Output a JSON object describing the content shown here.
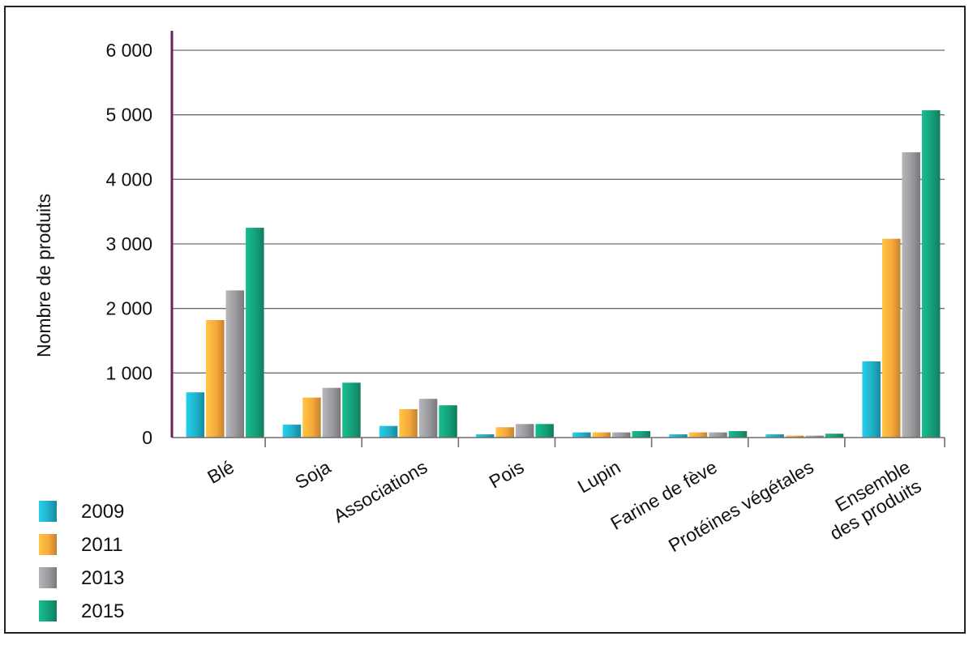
{
  "chart_data": {
    "type": "bar",
    "title": "",
    "xlabel": "",
    "ylabel": "Nombre de produits",
    "ylim": [
      0,
      6000
    ],
    "yticks": [
      0,
      1000,
      2000,
      3000,
      4000,
      5000,
      6000
    ],
    "ytick_labels": [
      "0",
      "1 000",
      "2 000",
      "3 000",
      "4 000",
      "5 000",
      "6 000"
    ],
    "grid": true,
    "legend_position": "bottom-left",
    "categories": [
      [
        "Blé"
      ],
      [
        "Soja"
      ],
      [
        "Associations"
      ],
      [
        "Pois"
      ],
      [
        "Lupin"
      ],
      [
        "Farine de fève"
      ],
      [
        "Protéines végétales"
      ],
      [
        "Ensemble",
        "des produits"
      ]
    ],
    "series": [
      {
        "name": "2009",
        "color": "#1fb0c9",
        "values": [
          700,
          200,
          180,
          50,
          80,
          50,
          50,
          1180
        ]
      },
      {
        "name": "2011",
        "color": "#f7a83a",
        "values": [
          1820,
          620,
          440,
          160,
          80,
          80,
          30,
          3080
        ]
      },
      {
        "name": "2013",
        "color": "#9a9a9e",
        "values": [
          2280,
          770,
          600,
          210,
          80,
          80,
          30,
          4420
        ]
      },
      {
        "name": "2015",
        "color": "#14a07a",
        "values": [
          3250,
          850,
          500,
          210,
          100,
          100,
          60,
          5070
        ]
      }
    ]
  }
}
